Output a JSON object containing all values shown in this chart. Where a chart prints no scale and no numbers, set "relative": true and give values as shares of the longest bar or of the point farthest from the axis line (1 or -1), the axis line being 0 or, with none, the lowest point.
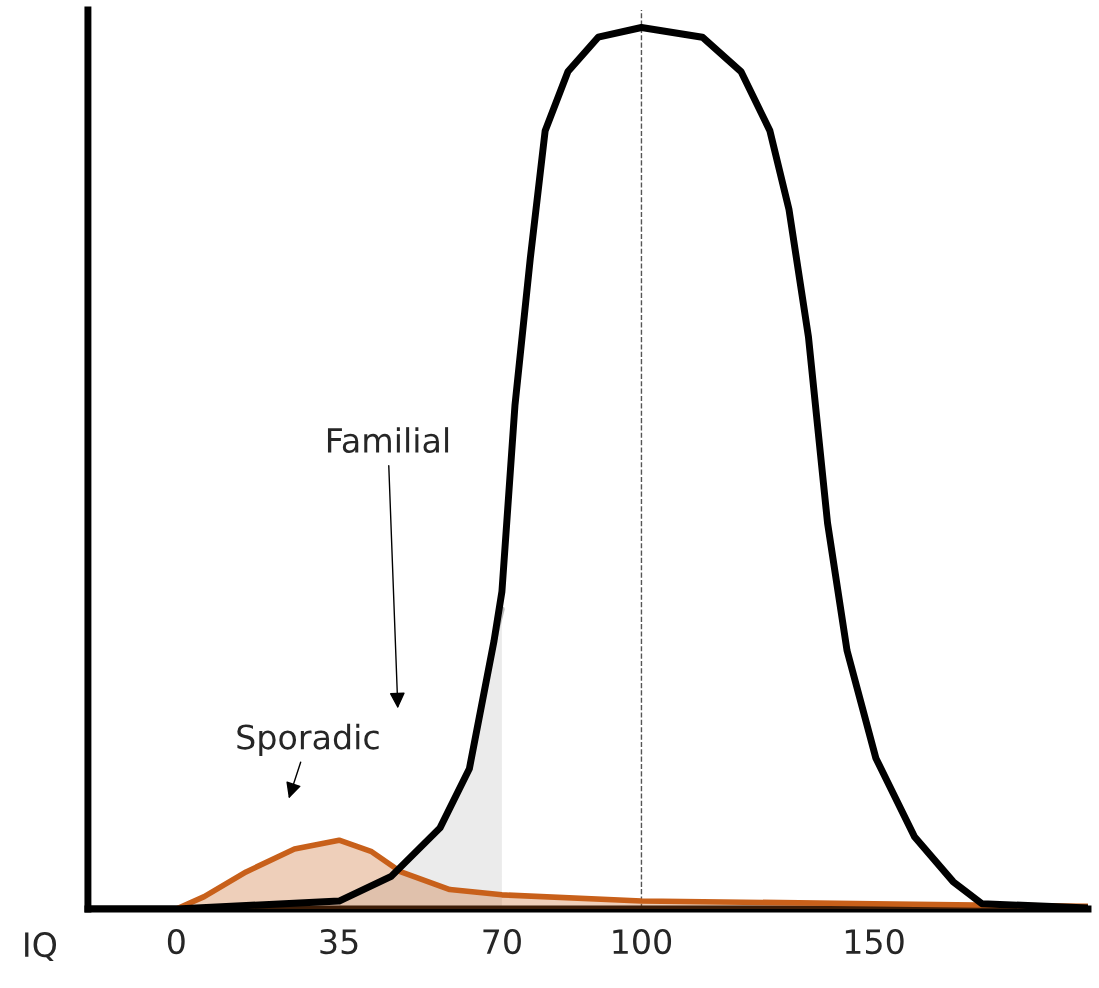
{
  "chart_data": {
    "type": "line",
    "relative": true,
    "xlabel": "IQ",
    "xlim": [
      -19,
      196
    ],
    "xticks": [
      0,
      35,
      70,
      100,
      150
    ],
    "grid": false,
    "legend": false,
    "series": [
      {
        "type": "area",
        "color": "#bdbdbd",
        "x": [
          35,
          46.2,
          56.7,
          63.0,
          68.3,
          70
        ],
        "values": [
          0.009,
          0.037,
          0.092,
          0.159,
          0.304,
          0.34
        ]
      },
      {
        "type": "area",
        "color": "#c8601a",
        "x": [
          -19,
          0,
          6.0,
          15.0,
          25.4,
          35,
          42.0,
          48.3,
          58.8,
          70,
          100,
          150,
          196
        ],
        "values": [
          0,
          0,
          0.014,
          0.042,
          0.068,
          0.078,
          0.065,
          0.042,
          0.022,
          0.016,
          0.009,
          0.006,
          0.003
        ]
      },
      {
        "color": "#000000",
        "x": [
          -19,
          0,
          35,
          46.2,
          56.7,
          63.0,
          68.3,
          70,
          72.8,
          76.1,
          79.3,
          84.2,
          90.7,
          100,
          113.1,
          121.4,
          127.6,
          131.7,
          135.9,
          140.0,
          144.2,
          150.4,
          158.7,
          167.0,
          173.2,
          196
        ],
        "values": [
          0,
          0,
          0.009,
          0.037,
          0.092,
          0.159,
          0.304,
          0.36,
          0.571,
          0.738,
          0.883,
          0.95,
          0.989,
          1,
          0.989,
          0.95,
          0.883,
          0.794,
          0.649,
          0.438,
          0.293,
          0.171,
          0.082,
          0.031,
          0.006,
          0.001
        ]
      }
    ],
    "ref_lines": [
      {
        "axis": "x",
        "value": 100,
        "line_style": "dashed",
        "color": "#555555"
      }
    ],
    "annotations": [
      "Familial",
      "Sporadic"
    ]
  }
}
